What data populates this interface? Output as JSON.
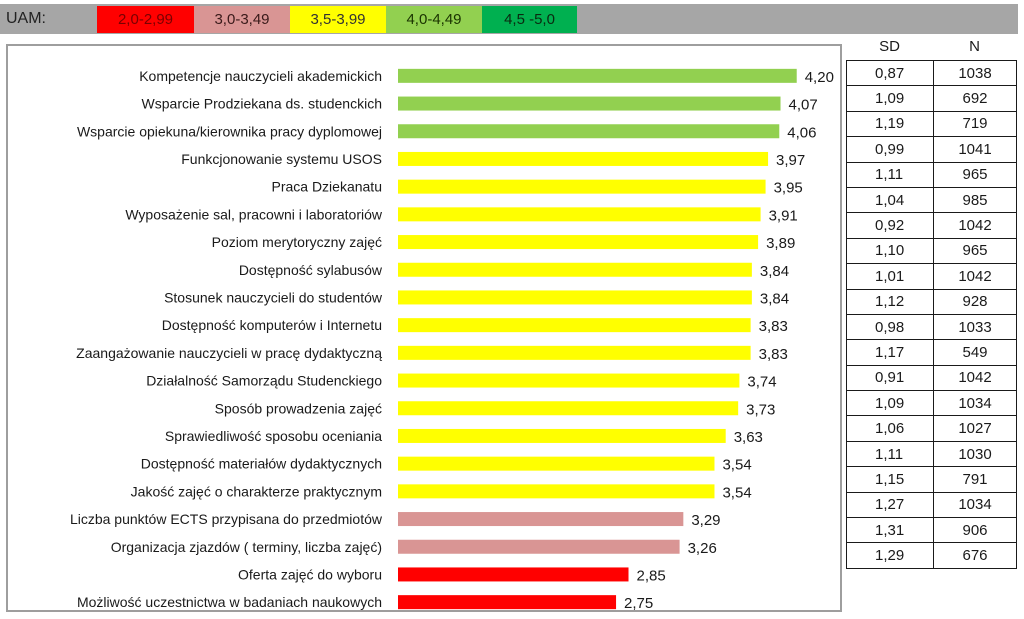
{
  "legend": {
    "title": "UAM:",
    "items": [
      {
        "label": "2,0-2,99",
        "color": "#ff0000",
        "text_color": "#7a0000"
      },
      {
        "label": "3,0-3,49",
        "color": "#d99594",
        "text_color": "#3a1a1a"
      },
      {
        "label": "3,5-3,99",
        "color": "#ffff00",
        "text_color": "#333333"
      },
      {
        "label": "4,0-4,49",
        "color": "#92d050",
        "text_color": "#1a3300"
      },
      {
        "label": "4,5 -5,0",
        "color": "#00b050",
        "text_color": "#0a2a10"
      }
    ]
  },
  "chart_data": {
    "type": "bar",
    "orientation": "horizontal",
    "categories": [
      "Kompetencje nauczycieli akademickich",
      "Wsparcie Prodziekana ds. studenckich",
      "Wsparcie opiekuna/kierownika pracy dyplomowej",
      "Funkcjonowanie systemu USOS",
      "Praca Dziekanatu",
      "Wyposażenie sal, pracowni i laboratoriów",
      "Poziom merytoryczny zajęć",
      "Dostępność sylabusów",
      "Stosunek nauczycieli do studentów",
      "Dostępność komputerów i Internetu",
      "Zaangażowanie nauczycieli w pracę dydaktyczną",
      "Działalność Samorządu Studenckiego",
      "Sposób prowadzenia zajęć",
      "Sprawiedliwość sposobu oceniania",
      "Dostępność materiałów dydaktycznych",
      "Jakość zajęć o charakterze praktycznym",
      "Liczba punktów ECTS przypisana do przedmiotów",
      "Organizacja zjazdów ( terminy, liczba zajęć)",
      "Oferta zajęć do wyboru",
      "Możliwość uczestnictwa w badaniach naukowych"
    ],
    "values": [
      4.2,
      4.07,
      4.06,
      3.97,
      3.95,
      3.91,
      3.89,
      3.84,
      3.84,
      3.83,
      3.83,
      3.74,
      3.73,
      3.63,
      3.54,
      3.54,
      3.29,
      3.26,
      2.85,
      2.75
    ],
    "value_labels": [
      "4,20",
      "4,07",
      "4,06",
      "3,97",
      "3,95",
      "3,91",
      "3,89",
      "3,84",
      "3,84",
      "3,83",
      "3,83",
      "3,74",
      "3,73",
      "3,63",
      "3,54",
      "3,54",
      "3,29",
      "3,26",
      "2,85",
      "2,75"
    ],
    "bar_colors": [
      "#92d050",
      "#92d050",
      "#92d050",
      "#ffff00",
      "#ffff00",
      "#ffff00",
      "#ffff00",
      "#ffff00",
      "#ffff00",
      "#ffff00",
      "#ffff00",
      "#ffff00",
      "#ffff00",
      "#ffff00",
      "#ffff00",
      "#ffff00",
      "#d99594",
      "#d99594",
      "#ff0000",
      "#ff0000"
    ],
    "xlim": [
      1.0,
      4.5
    ],
    "grid": false,
    "axis_visible": false
  },
  "stats": {
    "sd_header": "SD",
    "n_header": "N",
    "rows": [
      {
        "sd": "0,87",
        "n": "1038"
      },
      {
        "sd": "1,09",
        "n": "692"
      },
      {
        "sd": "1,19",
        "n": "719"
      },
      {
        "sd": "0,99",
        "n": "1041"
      },
      {
        "sd": "1,11",
        "n": "965"
      },
      {
        "sd": "1,04",
        "n": "985"
      },
      {
        "sd": "0,92",
        "n": "1042"
      },
      {
        "sd": "1,10",
        "n": "965"
      },
      {
        "sd": "1,01",
        "n": "1042"
      },
      {
        "sd": "1,12",
        "n": "928"
      },
      {
        "sd": "0,98",
        "n": "1033"
      },
      {
        "sd": "1,17",
        "n": "549"
      },
      {
        "sd": "0,91",
        "n": "1042"
      },
      {
        "sd": "1,09",
        "n": "1034"
      },
      {
        "sd": "1,06",
        "n": "1027"
      },
      {
        "sd": "1,11",
        "n": "1030"
      },
      {
        "sd": "1,15",
        "n": "791"
      },
      {
        "sd": "1,27",
        "n": "1034"
      },
      {
        "sd": "1,31",
        "n": "906"
      },
      {
        "sd": "1,29",
        "n": "676"
      }
    ]
  }
}
